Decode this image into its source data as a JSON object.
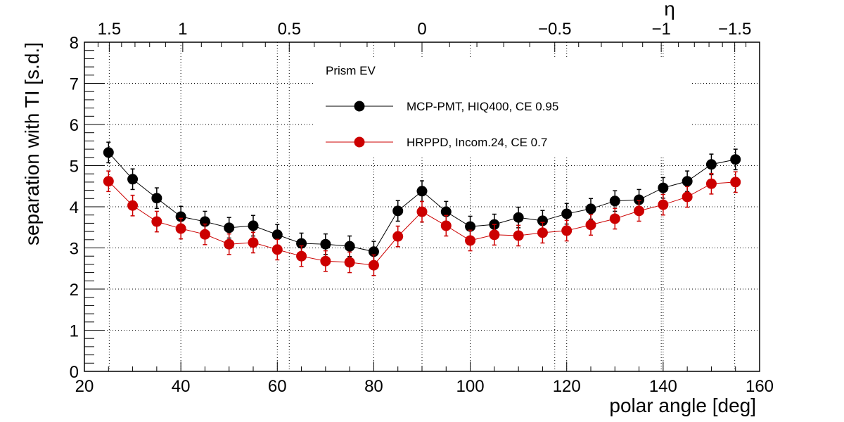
{
  "chart_data": {
    "type": "line",
    "title": "",
    "xlabel": "polar angle [deg]",
    "ylabel": "separation with TI [s.d.]",
    "xlim": [
      20,
      160
    ],
    "ylim": [
      0,
      8
    ],
    "grid": true,
    "x_ticks": [
      "20",
      "40",
      "60",
      "80",
      "100",
      "120",
      "140",
      "160"
    ],
    "y_ticks": [
      "0",
      "1",
      "2",
      "3",
      "4",
      "5",
      "6",
      "7",
      "8"
    ],
    "top_axis": {
      "label": "η",
      "ticks": [
        {
          "eta": 1.5,
          "label": "1.5"
        },
        {
          "eta": 1,
          "label": "1"
        },
        {
          "eta": 0.5,
          "label": "0.5"
        },
        {
          "eta": 0,
          "label": "0"
        },
        {
          "eta": -0.5,
          "label": "−0.5"
        },
        {
          "eta": -1,
          "label": "−1"
        },
        {
          "eta": -1.5,
          "label": "−1.5"
        }
      ]
    },
    "legend": {
      "title": "Prism EV",
      "position": "top-center"
    },
    "x": [
      25,
      30,
      35,
      40,
      45,
      50,
      55,
      60,
      65,
      70,
      75,
      80,
      85,
      90,
      95,
      100,
      105,
      110,
      115,
      120,
      125,
      130,
      135,
      140,
      145,
      150,
      155
    ],
    "series": [
      {
        "name": "MCP-PMT, HIQ400, CE 0.95",
        "color": "#000000",
        "values": [
          5.32,
          4.67,
          4.21,
          3.76,
          3.64,
          3.49,
          3.54,
          3.32,
          3.11,
          3.09,
          3.04,
          2.91,
          3.9,
          4.38,
          3.88,
          3.52,
          3.57,
          3.74,
          3.66,
          3.83,
          3.95,
          4.14,
          4.17,
          4.46,
          4.62,
          5.03,
          5.15
        ],
        "errors": [
          0.25,
          0.25,
          0.25,
          0.25,
          0.25,
          0.25,
          0.25,
          0.25,
          0.25,
          0.25,
          0.25,
          0.25,
          0.25,
          0.25,
          0.25,
          0.25,
          0.25,
          0.25,
          0.25,
          0.25,
          0.25,
          0.25,
          0.25,
          0.25,
          0.25,
          0.25,
          0.25
        ]
      },
      {
        "name": "HRPPD, Incom.24, CE 0.7",
        "color": "#cc0000",
        "values": [
          4.62,
          4.03,
          3.64,
          3.47,
          3.33,
          3.09,
          3.13,
          2.96,
          2.8,
          2.68,
          2.65,
          2.58,
          3.28,
          3.88,
          3.54,
          3.18,
          3.32,
          3.3,
          3.37,
          3.42,
          3.56,
          3.71,
          3.9,
          4.05,
          4.24,
          4.56,
          4.6
        ],
        "errors": [
          0.25,
          0.25,
          0.25,
          0.25,
          0.25,
          0.25,
          0.25,
          0.25,
          0.25,
          0.25,
          0.25,
          0.25,
          0.25,
          0.25,
          0.25,
          0.25,
          0.25,
          0.25,
          0.25,
          0.25,
          0.25,
          0.25,
          0.25,
          0.25,
          0.25,
          0.25,
          0.25
        ]
      }
    ]
  }
}
